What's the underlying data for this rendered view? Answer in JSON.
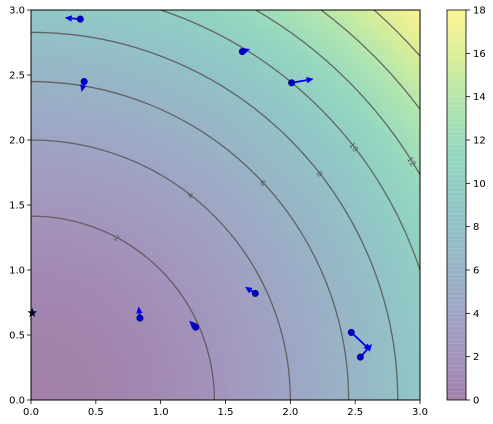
{
  "chart_data": {
    "type": "contour",
    "function": "x^2 + y^2",
    "xlim": [
      0,
      3
    ],
    "ylim": [
      0,
      3
    ],
    "xticks": [
      "0.0",
      "0.5",
      "1.0",
      "1.5",
      "2.0",
      "2.5",
      "3.0"
    ],
    "yticks": [
      "0.0",
      "0.5",
      "1.0",
      "1.5",
      "2.0",
      "2.5",
      "3.0"
    ],
    "contour_levels": [
      2,
      4,
      6,
      8,
      10,
      12,
      14,
      16
    ],
    "contour_label_text": [
      "2",
      "4",
      "6",
      "8",
      "10",
      "12",
      "14",
      "16"
    ],
    "colorbar": {
      "range": [
        0,
        18
      ],
      "ticks": [
        "0",
        "2",
        "4",
        "6",
        "8",
        "10",
        "12",
        "14",
        "16",
        "18"
      ],
      "colormap": "viridis",
      "colors": [
        "#440154",
        "#472d7b",
        "#3b528b",
        "#2c728e",
        "#21918c",
        "#28ae80",
        "#5ec962",
        "#addc30",
        "#fde725"
      ]
    },
    "points": [
      {
        "x": 0.38,
        "y": 2.93,
        "dx": -0.12,
        "dy": 0.01
      },
      {
        "x": 0.41,
        "y": 2.45,
        "dx": -0.02,
        "dy": -0.08
      },
      {
        "x": 1.63,
        "y": 2.68,
        "dx": 0.06,
        "dy": 0.02
      },
      {
        "x": 2.01,
        "y": 2.44,
        "dx": 0.17,
        "dy": 0.03
      },
      {
        "x": 0.84,
        "y": 0.63,
        "dx": -0.01,
        "dy": 0.09
      },
      {
        "x": 1.27,
        "y": 0.56,
        "dx": -0.05,
        "dy": 0.05
      },
      {
        "x": 1.73,
        "y": 0.82,
        "dx": -0.08,
        "dy": 0.05
      },
      {
        "x": 2.47,
        "y": 0.52,
        "dx": 0.15,
        "dy": -0.14
      },
      {
        "x": 2.54,
        "y": 0.33,
        "dx": 0.09,
        "dy": 0.1
      }
    ],
    "star": {
      "x": 0.01,
      "y": 0.67
    },
    "point_color": "#0000cc",
    "arrow_color": "#0000ee"
  }
}
